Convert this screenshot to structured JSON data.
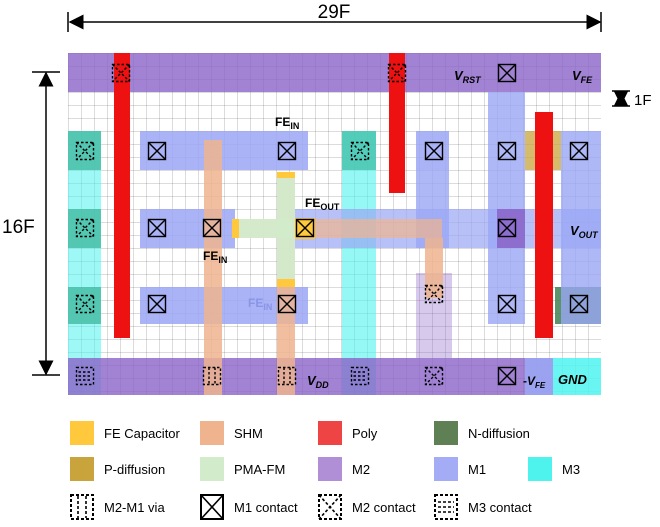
{
  "dimensions": {
    "width_label": "29F",
    "height_label": "16F",
    "pitch_label": "1F"
  },
  "labels": {
    "v_rst": "V",
    "v_rst_sub": "RST",
    "v_fe": "V",
    "v_fe_sub": "FE",
    "fe_in": "FE",
    "fe_in_sub": "IN",
    "fe_out": "FE",
    "fe_out_sub": "OUT",
    "v_out": "V",
    "v_out_sub": "OUT",
    "v_dd": "V",
    "v_dd_sub": "DD",
    "neg_v_fe": "-V",
    "neg_v_fe_sub": "FE",
    "gnd": "GND"
  },
  "colors": {
    "fe_capacitor": "#ffc83d",
    "shm": "#efb48e",
    "poly": "#ee1111",
    "n_diffusion": "#3f7f52",
    "p_diffusion": "#c9a43c",
    "pma_fm": "#d2ebcb",
    "m2": "#8a63c8",
    "m1": "#9aa6f4",
    "m3": "#4ff3ee"
  },
  "legend": [
    {
      "key": "fe_capacitor",
      "label": "FE Capacitor",
      "icon": "swatch"
    },
    {
      "key": "shm",
      "label": "SHM",
      "icon": "swatch"
    },
    {
      "key": "poly",
      "label": "Poly",
      "icon": "swatch"
    },
    {
      "key": "n_diffusion",
      "label": "N-diffusion",
      "icon": "swatch"
    },
    {
      "key": "p_diffusion",
      "label": "P-diffusion",
      "icon": "swatch"
    },
    {
      "key": "pma_fm",
      "label": "PMA-FM",
      "icon": "swatch"
    },
    {
      "key": "m2",
      "label": "M2",
      "icon": "swatch"
    },
    {
      "key": "m1",
      "label": "M1",
      "icon": "swatch"
    },
    {
      "key": "m3",
      "label": "M3",
      "icon": "swatch"
    },
    {
      "key": "m2_m1_via",
      "label": "M2-M1 via",
      "icon": "via-icon"
    },
    {
      "key": "m1_contact",
      "label": "M1 contact",
      "icon": "m1-contact-icon"
    },
    {
      "key": "m2_contact",
      "label": "M2 contact",
      "icon": "m2-contact-icon"
    },
    {
      "key": "m3_contact",
      "label": "M3 contact",
      "icon": "m3-contact-icon"
    }
  ]
}
